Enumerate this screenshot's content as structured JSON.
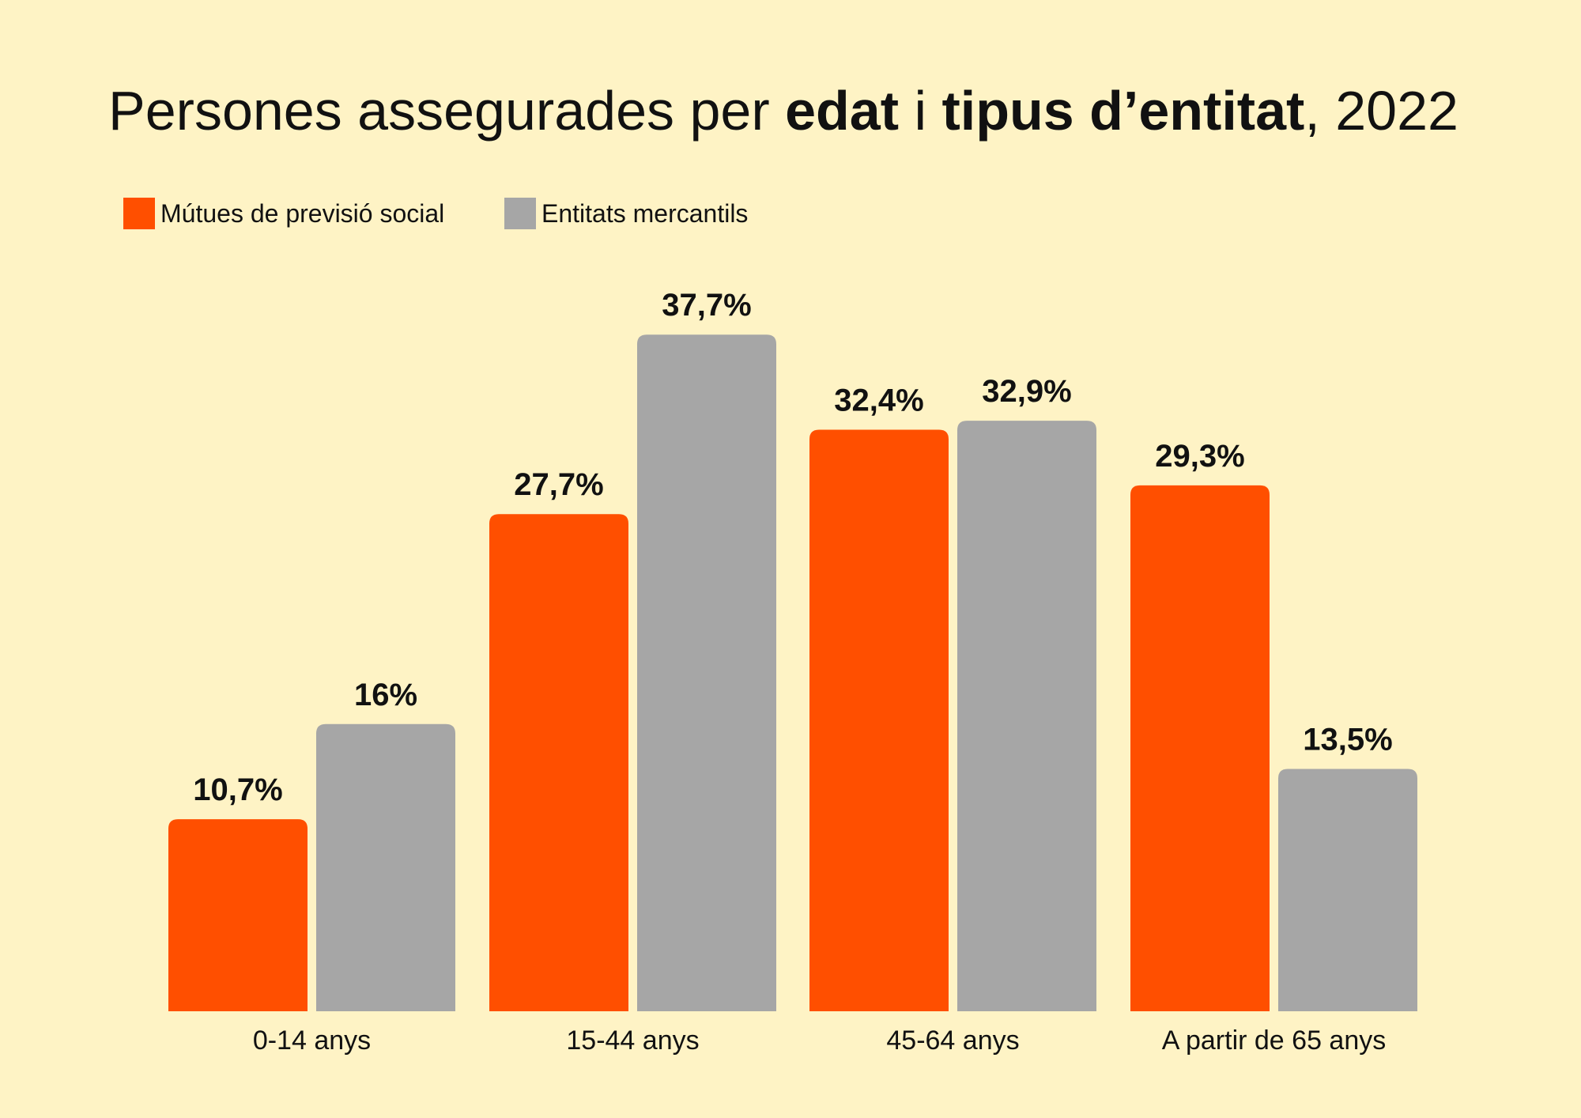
{
  "chart_data": {
    "type": "bar",
    "title_parts": [
      {
        "text": "Persones assegurades per ",
        "bold": false
      },
      {
        "text": "edat",
        "bold": true
      },
      {
        "text": " i ",
        "bold": false
      },
      {
        "text": "tipus d’entitat",
        "bold": true
      },
      {
        "text": ", 2022",
        "bold": false
      }
    ],
    "categories": [
      "0-14 anys",
      "15-44 anys",
      "45-64 anys",
      "A partir de 65 anys"
    ],
    "series": [
      {
        "name": "Mútues de previsió social",
        "color": "#FF4F00",
        "values": [
          10.7,
          27.7,
          32.4,
          29.3
        ],
        "labels": [
          "10,7%",
          "27,7%",
          "32,4%",
          "29,3%"
        ]
      },
      {
        "name": "Entitats mercantils",
        "color": "#A6A6A6",
        "values": [
          16,
          37.7,
          32.9,
          13.5
        ],
        "labels": [
          "16%",
          "37,7%",
          "32,9%",
          "13,5%"
        ]
      }
    ],
    "ylim": [
      0,
      40
    ],
    "grid": false,
    "legend": "top-left",
    "background": "#FEF3C5"
  }
}
